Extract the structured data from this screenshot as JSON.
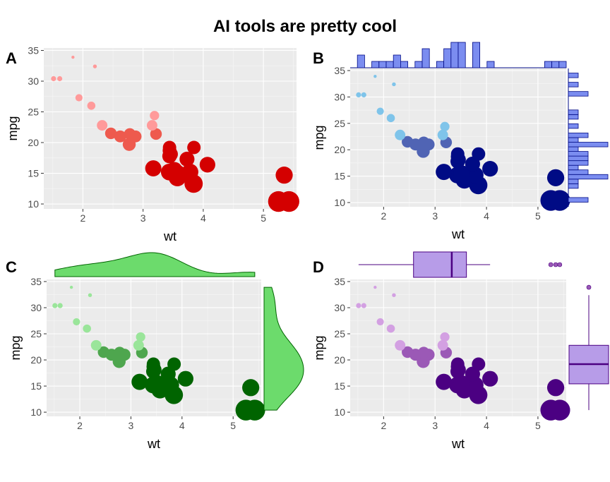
{
  "figure": {
    "title": "AI tools are pretty cool"
  },
  "panels": [
    {
      "tag": "A",
      "xlabel": "wt",
      "ylabel": "mpg",
      "marginal": "none",
      "colors": {
        "small": "#ff9a9a",
        "medium": "#ee5a4e",
        "large": "#d40000"
      }
    },
    {
      "tag": "B",
      "xlabel": "wt",
      "ylabel": "mpg",
      "marginal": "histogram",
      "colors": {
        "small": "#7fc4ea",
        "medium": "#5064b4",
        "large": "#000b85",
        "marginal_fill": "#7b8df0",
        "marginal_stroke": "#000b85"
      }
    },
    {
      "tag": "C",
      "xlabel": "wt",
      "ylabel": "mpg",
      "marginal": "density",
      "colors": {
        "small": "#9ae59a",
        "medium": "#4ea64e",
        "large": "#006400",
        "marginal_fill": "#6cdb6c",
        "marginal_stroke": "#006400"
      }
    },
    {
      "tag": "D",
      "xlabel": "wt",
      "ylabel": "mpg",
      "marginal": "boxplot",
      "colors": {
        "small": "#d3a0e2",
        "medium": "#9b59b6",
        "large": "#4b0082",
        "marginal_fill": "#b79ce8",
        "marginal_stroke": "#4b0082"
      }
    }
  ],
  "chart_data": {
    "type": "scatter",
    "x_field": "wt",
    "y_field": "mpg",
    "size_encoding": "decreasing mpg gives larger point",
    "x_ticks": [
      2,
      3,
      4,
      5
    ],
    "y_ticks": [
      10,
      15,
      20,
      25,
      30,
      35
    ],
    "xlim": [
      1.35,
      5.55
    ],
    "ylim": [
      9.2,
      35.4
    ],
    "grid": true,
    "points": [
      {
        "x": 2.62,
        "y": 21.0
      },
      {
        "x": 2.875,
        "y": 21.0
      },
      {
        "x": 2.32,
        "y": 22.8
      },
      {
        "x": 3.215,
        "y": 21.4
      },
      {
        "x": 3.44,
        "y": 18.7
      },
      {
        "x": 3.46,
        "y": 18.1
      },
      {
        "x": 3.57,
        "y": 14.3
      },
      {
        "x": 3.19,
        "y": 24.4
      },
      {
        "x": 3.15,
        "y": 22.8
      },
      {
        "x": 3.44,
        "y": 19.2
      },
      {
        "x": 3.44,
        "y": 17.8
      },
      {
        "x": 4.07,
        "y": 16.4
      },
      {
        "x": 3.73,
        "y": 17.3
      },
      {
        "x": 3.78,
        "y": 15.2
      },
      {
        "x": 5.25,
        "y": 10.4
      },
      {
        "x": 5.424,
        "y": 10.4
      },
      {
        "x": 5.345,
        "y": 14.7
      },
      {
        "x": 2.2,
        "y": 32.4
      },
      {
        "x": 1.615,
        "y": 30.4
      },
      {
        "x": 1.835,
        "y": 33.9
      },
      {
        "x": 2.465,
        "y": 21.5
      },
      {
        "x": 3.52,
        "y": 15.5
      },
      {
        "x": 3.435,
        "y": 15.2
      },
      {
        "x": 3.84,
        "y": 13.3
      },
      {
        "x": 3.845,
        "y": 19.2
      },
      {
        "x": 1.935,
        "y": 27.3
      },
      {
        "x": 2.14,
        "y": 26.0
      },
      {
        "x": 1.513,
        "y": 30.4
      },
      {
        "x": 3.17,
        "y": 15.8
      },
      {
        "x": 2.77,
        "y": 19.7
      },
      {
        "x": 3.57,
        "y": 15.0
      },
      {
        "x": 2.78,
        "y": 21.4
      }
    ]
  }
}
